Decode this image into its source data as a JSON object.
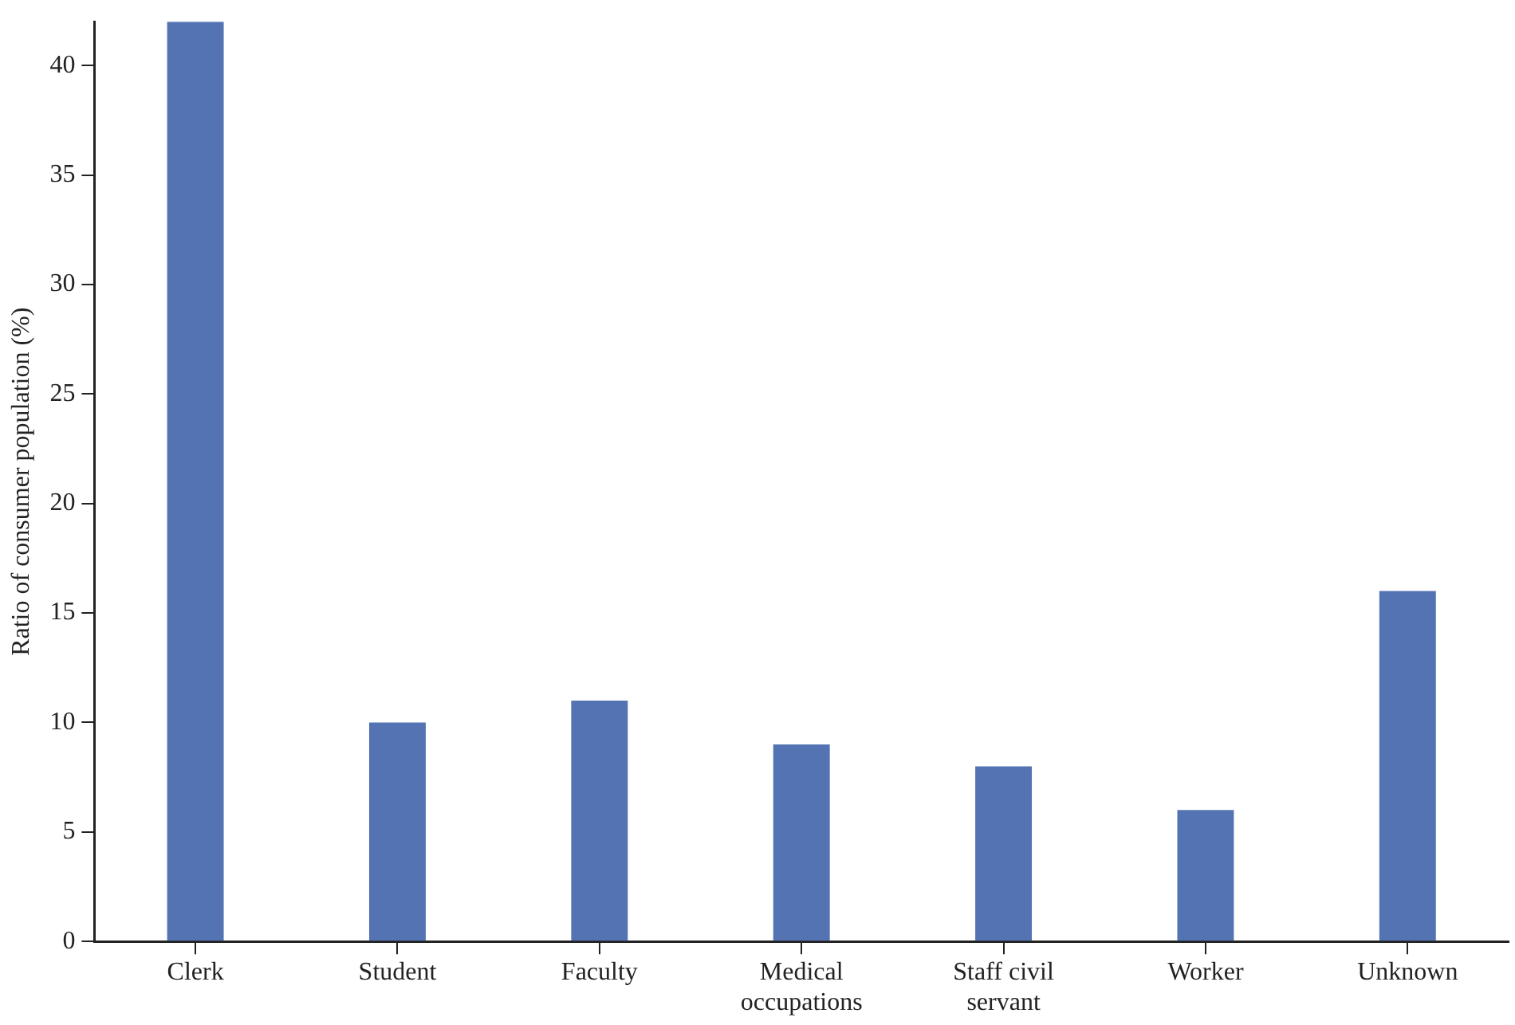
{
  "chart_data": {
    "type": "bar",
    "ylabel": "Ratio of consumer population (%)",
    "categories": [
      "Clerk",
      "Student",
      "Faculty",
      "Medical occupations",
      "Staff civil servant",
      "Worker",
      "Unknown"
    ],
    "values": [
      42,
      10,
      11,
      9,
      8,
      6,
      16
    ],
    "color": "#5473b3",
    "ylim": [
      0,
      42
    ],
    "yticks": [
      0,
      5,
      10,
      15,
      20,
      25,
      30,
      35,
      40
    ],
    "grid": false,
    "legend": false
  }
}
